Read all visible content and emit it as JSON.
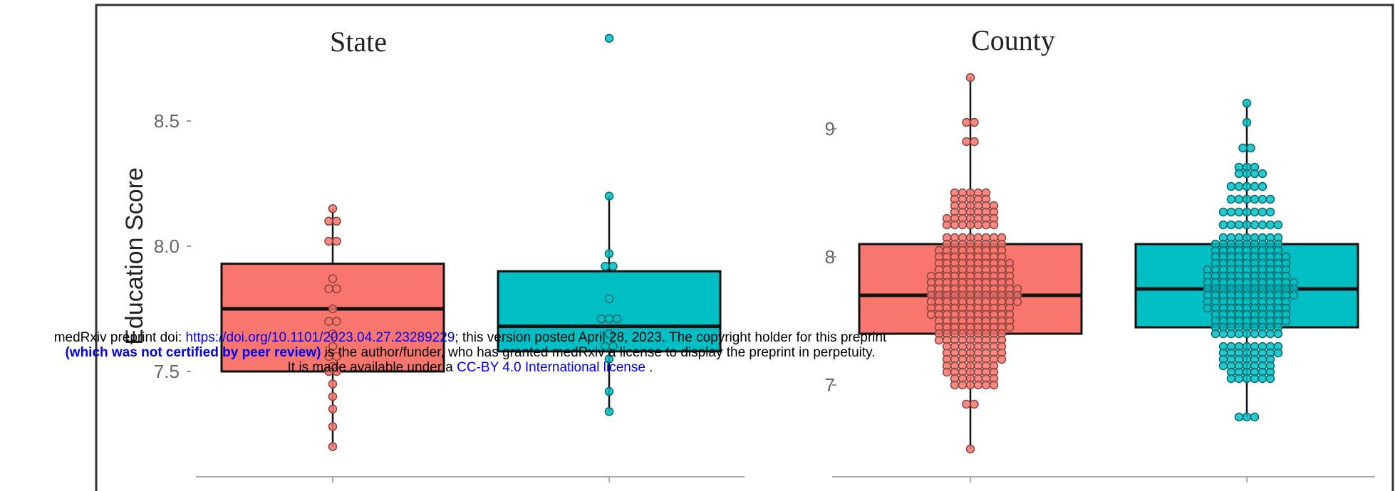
{
  "chart_data": [
    {
      "type": "box",
      "title": "State",
      "ylabel": "Education Score",
      "yticks": [
        7.5,
        8.0,
        8.5
      ],
      "ytick_labels": [
        "7.5",
        "8.0",
        "8.5"
      ],
      "ylim": [
        7.2,
        8.8
      ],
      "groups": [
        {
          "color": "#F8766D",
          "q1": 7.5,
          "median": 7.75,
          "q3": 7.93,
          "whisker_low": 7.2,
          "whisker_high": 8.15,
          "points": [
            8.15,
            8.1,
            8.1,
            8.02,
            8.02,
            7.87,
            7.83,
            7.83,
            7.75,
            7.7,
            7.7,
            7.65,
            7.6,
            7.56,
            7.56,
            7.52,
            7.5,
            7.5,
            7.45,
            7.4,
            7.35,
            7.28,
            7.2
          ]
        },
        {
          "color": "#00BFC4",
          "q1": 7.58,
          "median": 7.68,
          "q3": 7.9,
          "whisker_low": 7.34,
          "whisker_high": 8.2,
          "points": [
            8.83,
            8.2,
            7.97,
            7.92,
            7.92,
            7.79,
            7.71,
            7.71,
            7.71,
            7.65,
            7.6,
            7.6,
            7.55,
            7.42,
            7.34
          ]
        }
      ]
    },
    {
      "type": "box",
      "title": "County",
      "ylabel": "",
      "yticks": [
        7,
        8,
        9
      ],
      "ytick_labels": [
        "7",
        "8",
        "9"
      ],
      "ylim": [
        6.5,
        9.7
      ],
      "groups": [
        {
          "color": "#F8766D",
          "q1": 7.4,
          "median": 7.7,
          "q3": 8.1,
          "whisker_low": 6.5,
          "whisker_high": 9.4,
          "points": [
            9.4,
            9.05,
            9.05,
            8.9,
            8.9,
            8.5,
            8.45,
            8.4,
            8.35,
            8.3,
            8.25,
            8.15,
            8.1,
            8.05,
            8.0,
            7.95,
            7.9,
            7.85,
            7.8,
            7.75,
            7.7,
            7.65,
            7.6,
            7.55,
            7.5,
            7.45,
            7.4,
            7.35,
            7.3,
            7.25,
            7.2,
            7.15,
            7.1,
            7.05,
            7.0,
            6.85,
            6.85,
            6.5
          ]
        },
        {
          "color": "#00BFC4",
          "q1": 7.45,
          "median": 7.75,
          "q3": 8.1,
          "whisker_low": 6.75,
          "whisker_high": 9.2,
          "points": [
            9.2,
            9.05,
            8.85,
            8.85,
            8.7,
            8.65,
            8.55,
            8.45,
            8.35,
            8.25,
            8.15,
            8.1,
            8.05,
            8.0,
            7.95,
            7.9,
            7.85,
            7.8,
            7.75,
            7.7,
            7.65,
            7.6,
            7.55,
            7.5,
            7.45,
            7.4,
            7.3,
            7.25,
            7.2,
            7.15,
            7.1,
            7.05,
            6.75
          ]
        }
      ]
    }
  ],
  "notice": {
    "line1_prefix": "medRxiv preprint doi: ",
    "doi_link": "https://doi.org/10.1101/2023.04.27.23289229",
    "line1_suffix": "; this version posted April 28, 2023. The copyright holder for this preprint",
    "line2_bold": "(which was not certified by peer review)",
    "line2_rest": " is the author/funder, who has granted medRxiv a license to display the preprint in perpetuity.",
    "line3_prefix": "It is made available under a ",
    "license_link": "CC-BY 4.0 International license",
    "line3_suffix": " ."
  }
}
